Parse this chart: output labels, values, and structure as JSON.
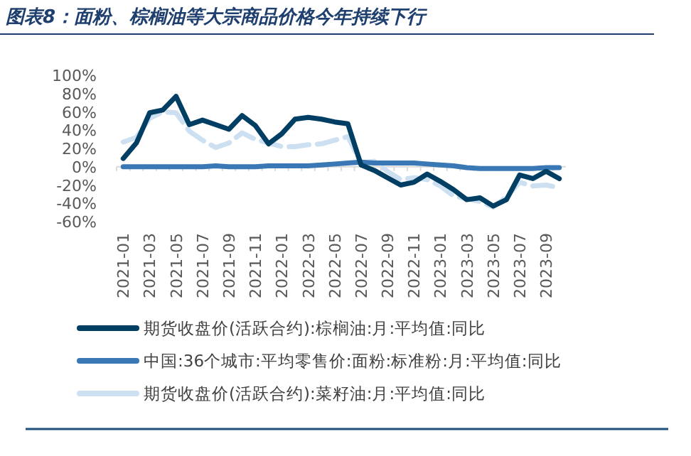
{
  "chart_data": {
    "type": "line",
    "title": "图表8：面粉、棕榈油等大宗商品价格今年持续下行",
    "categories": [
      "2021-01",
      null,
      "2021-03",
      null,
      "2021-05",
      null,
      "2021-07",
      null,
      "2021-09",
      null,
      "2021-11",
      null,
      "2022-01",
      null,
      "2022-03",
      null,
      "2022-05",
      null,
      "2022-07",
      null,
      "2022-09",
      null,
      "2022-11",
      null,
      "2023-01",
      null,
      "2023-03",
      null,
      "2023-05",
      null,
      "2023-07",
      null,
      "2023-09",
      null
    ],
    "series": [
      {
        "name": "期货收盘价(活跃合约):棕榈油:月:平均值:同比",
        "color": "#003f63",
        "line_style": "solid",
        "values": [
          9,
          26,
          59,
          62,
          77,
          46,
          51,
          46,
          41,
          56,
          45,
          25,
          36,
          52,
          54,
          52,
          49,
          47,
          2,
          -4,
          -12,
          -20,
          -17,
          -8,
          -16,
          -25,
          -36,
          -34,
          -43,
          -36,
          -9,
          -13,
          -5,
          -13
        ]
      },
      {
        "name": "中国:36个城市:平均零售价:面粉:标准粉:月:平均值:同比",
        "color": "#3a78b5",
        "line_style": "solid",
        "values": [
          0,
          0,
          0,
          0,
          0,
          0,
          0,
          1,
          0,
          0,
          0,
          1,
          1,
          1,
          1,
          2,
          3,
          4,
          5,
          4,
          4,
          4,
          4,
          3,
          2,
          1,
          -1,
          -2,
          -2,
          -2,
          -2,
          -2,
          -1,
          -1
        ]
      },
      {
        "name": "期货收盘价(活跃合约):菜籽油:月:平均值:同比",
        "color": "#cde0f1",
        "line_style": "dashed",
        "values": [
          27,
          32,
          53,
          60,
          59,
          39,
          29,
          21,
          26,
          37,
          30,
          26,
          22,
          22,
          24,
          25,
          29,
          33,
          4,
          6,
          -5,
          -14,
          -12,
          -14,
          -21,
          -32,
          -35,
          -38,
          -44,
          -33,
          -17,
          -21,
          -20,
          -23
        ]
      }
    ],
    "ylim": [
      -60,
      100
    ],
    "yticks": [
      {
        "value": -60,
        "label": "-60%"
      },
      {
        "value": -40,
        "label": "-40%"
      },
      {
        "value": -20,
        "label": "-20%"
      },
      {
        "value": 0,
        "label": "0%"
      },
      {
        "value": 20,
        "label": "20%"
      },
      {
        "value": 40,
        "label": "40%"
      },
      {
        "value": 60,
        "label": "60%"
      },
      {
        "value": 80,
        "label": "80%"
      },
      {
        "value": 100,
        "label": "100%"
      }
    ],
    "legend": "bottom",
    "marker": "none"
  }
}
